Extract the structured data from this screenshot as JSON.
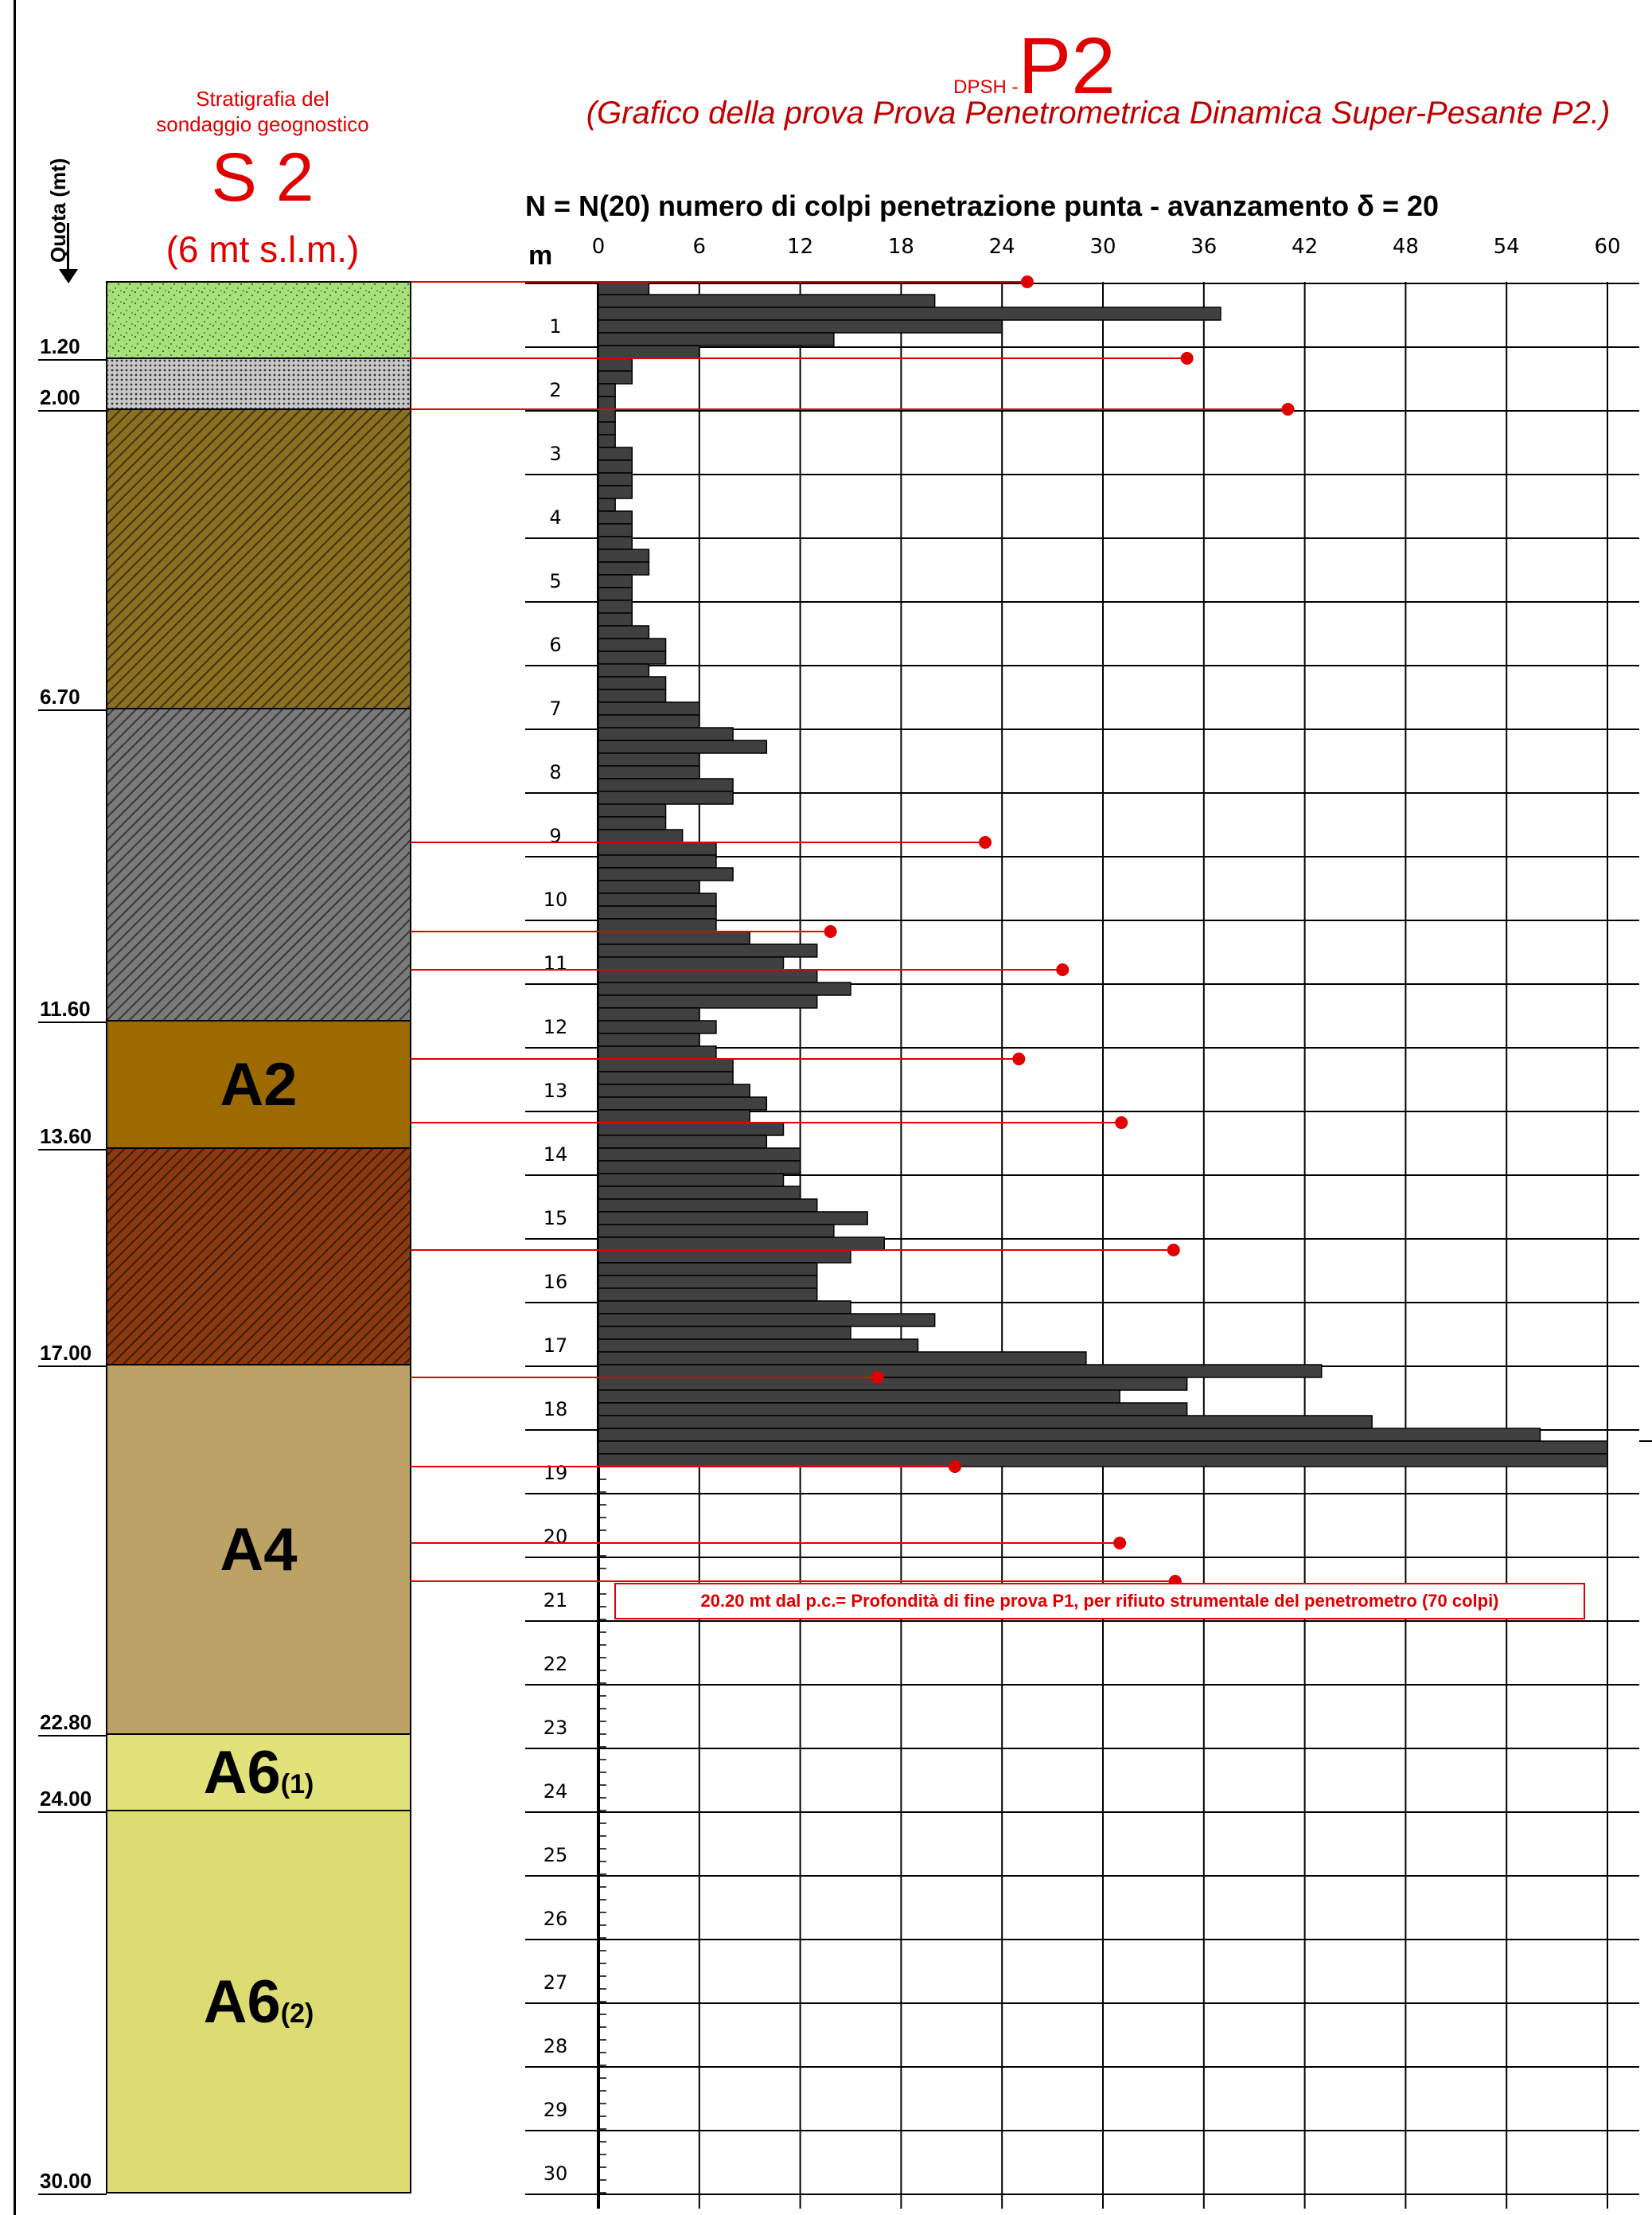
{
  "quota_label": "Quota (mt)",
  "stratigraphy": {
    "title_line1": "Stratigrafia del",
    "title_line2": "sondaggio geognostico",
    "code": "S 2",
    "elevation": "(6 mt s.l.m.)",
    "depth_labels": [
      "1.20",
      "2.00",
      "6.70",
      "11.60",
      "13.60",
      "17.00",
      "22.80",
      "24.00",
      "30.00"
    ],
    "layers": [
      {
        "top": 0.0,
        "bottom": 1.2,
        "label": "",
        "color": "#a6e07a",
        "pattern": "speckle"
      },
      {
        "top": 1.2,
        "bottom": 2.0,
        "label": "",
        "color": "#c8c8c8",
        "pattern": "dots"
      },
      {
        "top": 2.0,
        "bottom": 6.7,
        "label": "",
        "color": "#8a7020",
        "pattern": "hatch"
      },
      {
        "top": 6.7,
        "bottom": 11.6,
        "label": "",
        "color": "#7a7a7a",
        "pattern": "hatch"
      },
      {
        "top": 11.6,
        "bottom": 13.6,
        "label": "A2",
        "sub": "",
        "color": "#9c6a00",
        "pattern": "solid"
      },
      {
        "top": 13.6,
        "bottom": 17.0,
        "label": "",
        "color": "#8a3a10",
        "pattern": "hatch"
      },
      {
        "top": 17.0,
        "bottom": 22.8,
        "label": "A4",
        "sub": "",
        "color": "#bca264",
        "pattern": "solid"
      },
      {
        "top": 22.8,
        "bottom": 24.0,
        "label": "A6",
        "sub": "(1)",
        "color": "#e2e27a",
        "pattern": "solid"
      },
      {
        "top": 24.0,
        "bottom": 30.0,
        "label": "A6",
        "sub": "(2)",
        "color": "#dcdc72",
        "pattern": "solid"
      }
    ]
  },
  "test": {
    "prefix": "DPSH -",
    "code": "P2",
    "subtitle": "(Grafico della prova Prova Penetrometrica Dinamica Super-Pesante P2.)",
    "header": "N = N(20)  numero di colpi penetrazione punta  -  avanzamento  δ =  20",
    "note": "20.20 mt dal p.c.= Profondità di fine prova P1, per rifiuto strumentale del penetrometro (70 colpi)"
  },
  "chart_data": {
    "type": "bar",
    "orientation": "horizontal",
    "xlabel": "N = N(20)  numero di colpi penetrazione punta  -  avanzamento  δ =  20",
    "ylabel": "m",
    "xlim": [
      0,
      60
    ],
    "ylim": [
      0,
      30
    ],
    "x_ticks": [
      "0",
      "6",
      "12",
      "18",
      "24",
      "30",
      "36",
      "42",
      "48",
      "54",
      "60"
    ],
    "y_ticks": [
      "1",
      "2",
      "3",
      "4",
      "5",
      "6",
      "7",
      "8",
      "9",
      "10",
      "11",
      "12",
      "13",
      "14",
      "15",
      "16",
      "17",
      "18",
      "19",
      "20",
      "21",
      "22",
      "23",
      "24",
      "25",
      "26",
      "27",
      "28",
      "29",
      "30"
    ],
    "depth_step": 0.2,
    "values": [
      3,
      20,
      37,
      24,
      14,
      6,
      2,
      2,
      1,
      1,
      1,
      1,
      1,
      2,
      2,
      2,
      2,
      1,
      2,
      2,
      2,
      3,
      3,
      2,
      2,
      2,
      2,
      3,
      4,
      4,
      3,
      4,
      4,
      6,
      6,
      8,
      10,
      6,
      6,
      8,
      8,
      4,
      4,
      5,
      7,
      7,
      8,
      6,
      7,
      7,
      7,
      9,
      13,
      11,
      13,
      15,
      13,
      6,
      7,
      6,
      7,
      8,
      8,
      9,
      10,
      9,
      11,
      10,
      12,
      12,
      11,
      12,
      13,
      16,
      14,
      17,
      15,
      13,
      13,
      13,
      15,
      20,
      15,
      19,
      29,
      43,
      35,
      31,
      35,
      46,
      56,
      60,
      60
    ],
    "grid": true,
    "annotations": [
      {
        "y": 0.0,
        "x": 25.5
      },
      {
        "y": 1.2,
        "x": 35.0
      },
      {
        "y": 2.0,
        "x": 41.0
      },
      {
        "y": 8.8,
        "x": 23.0
      },
      {
        "y": 10.2,
        "x": 13.8
      },
      {
        "y": 10.8,
        "x": 27.6
      },
      {
        "y": 12.2,
        "x": 25.0
      },
      {
        "y": 13.2,
        "x": 31.1
      },
      {
        "y": 15.2,
        "x": 34.2
      },
      {
        "y": 17.2,
        "x": 16.6
      },
      {
        "y": 18.6,
        "x": 21.2
      },
      {
        "y": 19.8,
        "x": 31.0
      },
      {
        "y": 20.4,
        "x": 34.3
      }
    ]
  },
  "colors": {
    "bar": "#404040",
    "red": "#e00000",
    "grid": "#000000"
  }
}
